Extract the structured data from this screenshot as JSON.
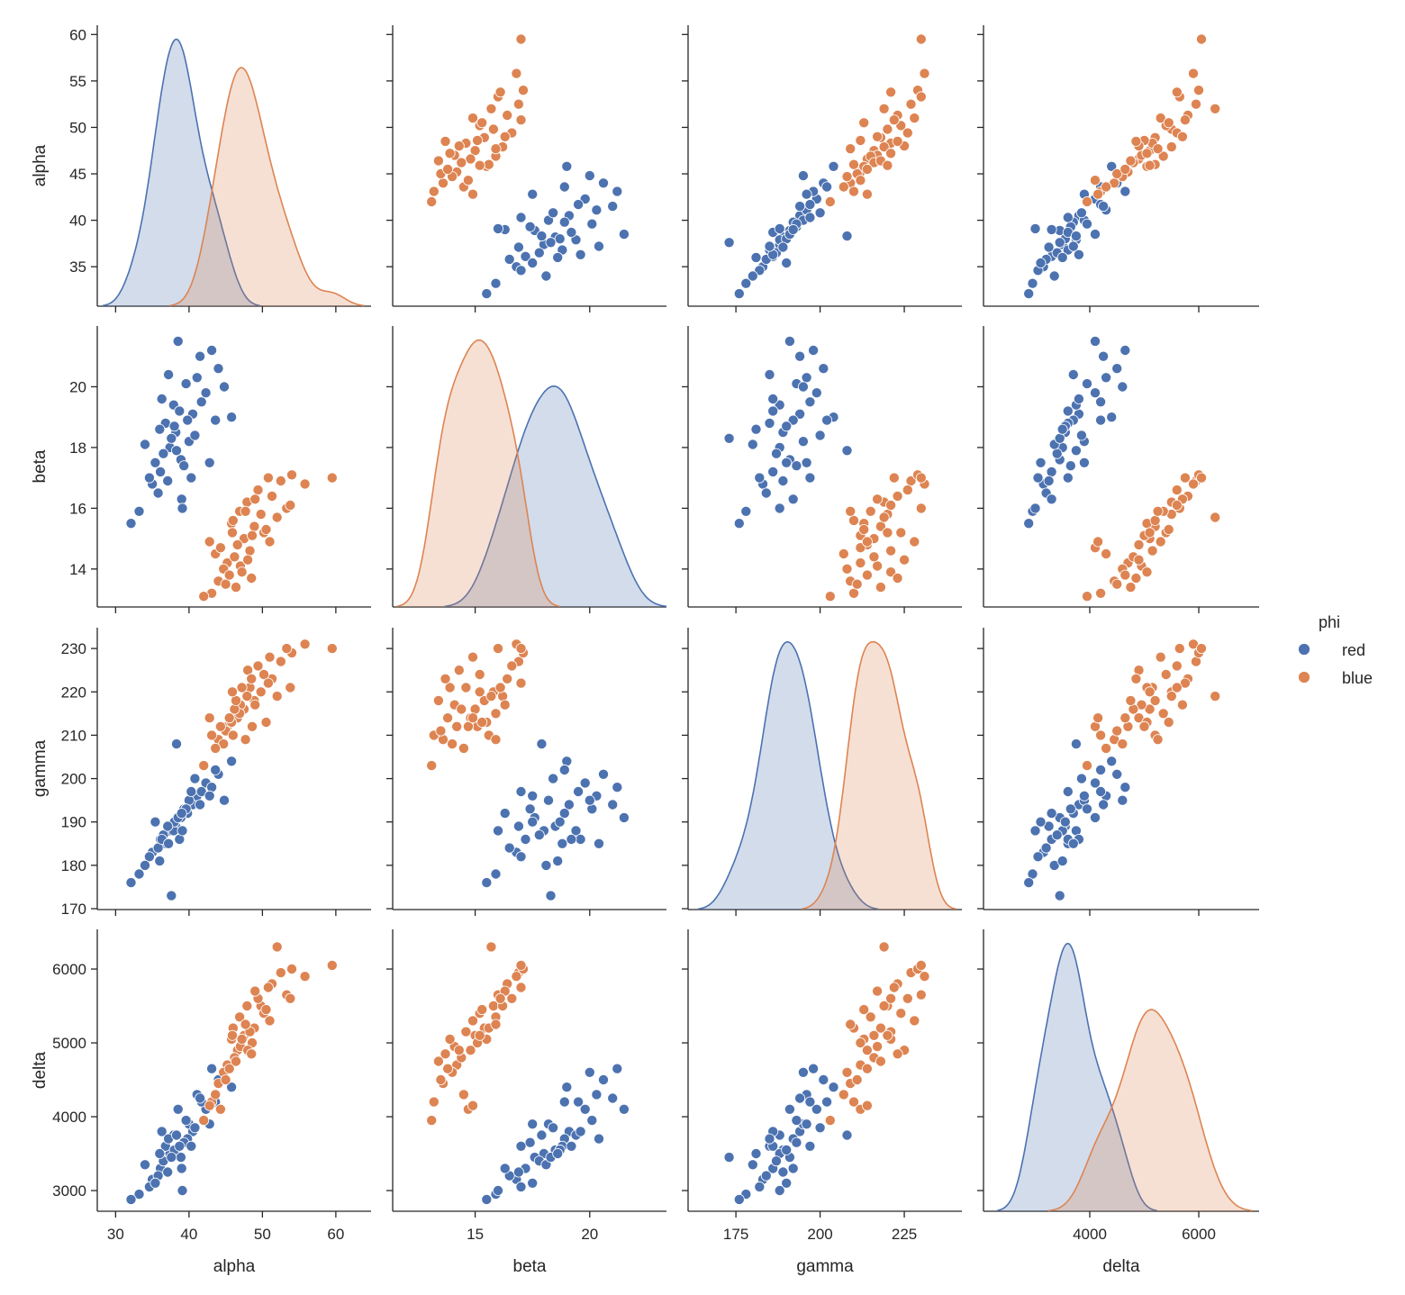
{
  "chart_data": {
    "type": "scatter",
    "kind": "pairplot",
    "hue": "phi",
    "variables": [
      "alpha",
      "beta",
      "gamma",
      "delta"
    ],
    "axis_labels": {
      "alpha": "alpha",
      "beta": "beta",
      "gamma": "gamma",
      "delta": "delta"
    },
    "diagonal": "kde",
    "grid": false,
    "legend": {
      "title": "phi",
      "placement": "right",
      "entries": [
        {
          "label": "red",
          "color": "#4c72b0"
        },
        {
          "label": "blue",
          "color": "#dd8452"
        }
      ]
    },
    "x_ticks": {
      "alpha": [
        "30",
        "40",
        "50",
        "60"
      ],
      "beta": [
        "15",
        "20"
      ],
      "gamma": [
        "175",
        "200",
        "225"
      ],
      "delta": [
        "4000",
        "6000"
      ]
    },
    "y_ticks": {
      "alpha": [
        "35",
        "40",
        "45",
        "50",
        "55",
        "60"
      ],
      "beta": [
        "14",
        "16",
        "18",
        "20"
      ],
      "gamma": [
        "170",
        "180",
        "190",
        "200",
        "210",
        "220",
        "230"
      ],
      "delta": [
        "3000",
        "4000",
        "5000",
        "6000"
      ]
    },
    "x_range": {
      "alpha": [
        27.5,
        64.8
      ],
      "beta": [
        11.4,
        23.35
      ],
      "gamma": [
        160.8,
        242.1
      ],
      "delta": [
        2050,
        7107
      ]
    },
    "y_range": {
      "alpha": [
        30.75,
        61.0
      ],
      "beta": [
        12.75,
        22.0
      ],
      "gamma": [
        169.8,
        234.8
      ],
      "delta": [
        2720,
        6537
      ]
    },
    "series": [
      {
        "name": "red",
        "color": "#4c72b0",
        "points": [
          [
            38.2,
            18.5,
            189,
            3550
          ],
          [
            36.1,
            17.2,
            186,
            3300
          ],
          [
            40.5,
            19.1,
            194,
            3800
          ],
          [
            35.0,
            16.8,
            183,
            3150
          ],
          [
            42.3,
            19.8,
            199,
            4100
          ],
          [
            37.4,
            18.0,
            188,
            3500
          ],
          [
            39.8,
            18.9,
            192,
            3700
          ],
          [
            33.2,
            15.9,
            178,
            2950
          ],
          [
            41.1,
            20.3,
            196,
            4300
          ],
          [
            38.9,
            17.6,
            191,
            3450
          ],
          [
            36.8,
            18.8,
            185,
            3600
          ],
          [
            44.0,
            20.6,
            201,
            4500
          ],
          [
            39.3,
            17.4,
            193,
            3650
          ],
          [
            34.6,
            17.0,
            182,
            3050
          ],
          [
            37.9,
            19.4,
            188,
            3750
          ],
          [
            40.0,
            18.2,
            195,
            3900
          ],
          [
            35.8,
            16.5,
            184,
            3200
          ],
          [
            43.1,
            21.2,
            198,
            4650
          ],
          [
            38.0,
            18.7,
            190,
            3550
          ],
          [
            32.1,
            15.5,
            176,
            2880
          ],
          [
            41.7,
            19.5,
            197,
            4200
          ],
          [
            36.5,
            17.8,
            187,
            3400
          ],
          [
            39.6,
            20.1,
            193,
            3950
          ],
          [
            37.1,
            16.9,
            189,
            3250
          ],
          [
            45.8,
            19.0,
            204,
            4400
          ],
          [
            38.5,
            21.5,
            191,
            4100
          ],
          [
            40.8,
            18.4,
            200,
            3850
          ],
          [
            34.0,
            18.1,
            180,
            3350
          ],
          [
            42.8,
            17.5,
            196,
            3900
          ],
          [
            36.3,
            19.6,
            186,
            3800
          ],
          [
            39.0,
            16.3,
            192,
            3300
          ],
          [
            37.6,
            18.3,
            173,
            3450
          ],
          [
            41.5,
            21.0,
            194,
            4250
          ],
          [
            35.4,
            17.5,
            190,
            3100
          ],
          [
            38.7,
            19.2,
            186,
            3600
          ],
          [
            43.6,
            18.9,
            202,
            4200
          ],
          [
            37.2,
            20.4,
            185,
            3700
          ],
          [
            40.3,
            17.0,
            197,
            3600
          ],
          [
            36.0,
            18.6,
            181,
            3500
          ],
          [
            39.1,
            16.0,
            188,
            3000
          ],
          [
            44.8,
            20.0,
            195,
            4600
          ],
          [
            38.3,
            17.9,
            208,
            3750
          ]
        ]
      },
      {
        "name": "blue",
        "color": "#dd8452",
        "points": [
          [
            47.5,
            15.0,
            216,
            5100
          ],
          [
            45.2,
            14.2,
            212,
            4700
          ],
          [
            49.8,
            15.8,
            220,
            5500
          ],
          [
            44.0,
            13.6,
            209,
            4450
          ],
          [
            51.3,
            16.4,
            223,
            5800
          ],
          [
            46.6,
            14.8,
            214,
            4900
          ],
          [
            48.9,
            15.4,
            218,
            5200
          ],
          [
            43.1,
            13.2,
            210,
            4200
          ],
          [
            52.5,
            16.9,
            227,
            5950
          ],
          [
            47.0,
            14.1,
            217,
            4950
          ],
          [
            45.8,
            15.5,
            213,
            5050
          ],
          [
            54.0,
            17.1,
            229,
            6000
          ],
          [
            48.3,
            14.6,
            221,
            5150
          ],
          [
            44.7,
            14.0,
            208,
            4600
          ],
          [
            46.9,
            15.9,
            215,
            5350
          ],
          [
            50.2,
            15.2,
            224,
            5400
          ],
          [
            45.0,
            13.5,
            211,
            4500
          ],
          [
            53.3,
            16.0,
            230,
            5650
          ],
          [
            47.9,
            16.2,
            219,
            5500
          ],
          [
            42.0,
            13.1,
            203,
            3950
          ],
          [
            50.8,
            17.0,
            222,
            5750
          ],
          [
            46.2,
            14.4,
            216,
            4800
          ],
          [
            49.4,
            16.6,
            226,
            5600
          ],
          [
            45.5,
            13.8,
            214,
            4650
          ],
          [
            55.8,
            16.8,
            231,
            5900
          ],
          [
            48.6,
            15.1,
            212,
            5000
          ],
          [
            51.0,
            14.9,
            228,
            5300
          ],
          [
            43.6,
            14.5,
            207,
            4300
          ],
          [
            47.2,
            13.9,
            221,
            5050
          ],
          [
            49.0,
            16.3,
            217,
            5700
          ],
          [
            46.0,
            15.6,
            210,
            5200
          ],
          [
            59.5,
            17.0,
            230,
            6050
          ],
          [
            52.0,
            15.7,
            219,
            6300
          ],
          [
            44.3,
            14.7,
            212,
            4100
          ],
          [
            48.0,
            14.3,
            225,
            4900
          ],
          [
            50.5,
            15.3,
            213,
            5450
          ],
          [
            46.4,
            13.4,
            218,
            4750
          ],
          [
            42.8,
            14.9,
            214,
            4150
          ],
          [
            53.8,
            16.1,
            221,
            5600
          ],
          [
            47.7,
            15.9,
            209,
            5250
          ],
          [
            48.5,
            13.7,
            223,
            4850
          ],
          [
            45.9,
            15.2,
            220,
            5100
          ]
        ]
      }
    ]
  }
}
